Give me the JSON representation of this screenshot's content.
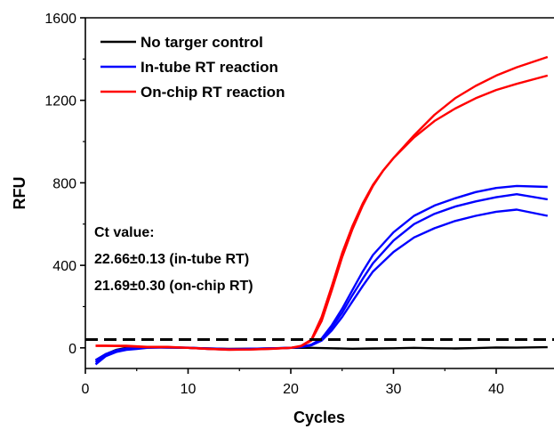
{
  "chart_data": {
    "type": "line",
    "xlabel": "Cycles",
    "ylabel": "RFU",
    "xlim": [
      0,
      45
    ],
    "ylim": [
      -100,
      1600
    ],
    "xticks": [
      0,
      10,
      20,
      30,
      40
    ],
    "yticks": [
      0,
      400,
      800,
      1200,
      1600
    ],
    "grid": false,
    "legend_position": "top-left",
    "legend": [
      {
        "label": "No targer control",
        "color": "#000000"
      },
      {
        "label": "In-tube RT reaction",
        "color": "#0000ff"
      },
      {
        "label": "On-chip RT reaction",
        "color": "#ff0000"
      }
    ],
    "threshold": 40,
    "annotations": {
      "title": "Ct value:",
      "line1": "22.66±0.13 (in-tube RT)",
      "line2": "21.69±0.30 (on-chip RT)"
    },
    "series": [
      {
        "group": "No targer control",
        "color": "#000000",
        "x": [
          1,
          2,
          3,
          4,
          5,
          6,
          8,
          10,
          12,
          14,
          16,
          18,
          20,
          22,
          24,
          26,
          28,
          30,
          32,
          34,
          36,
          38,
          40,
          42,
          45
        ],
        "y": [
          -60,
          -30,
          -10,
          0,
          2,
          3,
          2,
          0,
          -3,
          -5,
          -4,
          -3,
          0,
          0,
          -2,
          -4,
          -3,
          -2,
          0,
          -2,
          -3,
          -1,
          2,
          1,
          3
        ]
      },
      {
        "group": "In-tube RT reaction",
        "color": "#0000ff",
        "x": [
          1,
          2,
          3,
          4,
          5,
          6,
          8,
          10,
          12,
          14,
          16,
          18,
          20,
          21,
          22,
          23,
          24,
          25,
          26,
          27,
          28,
          30,
          32,
          34,
          36,
          38,
          40,
          42,
          45
        ],
        "y": [
          -80,
          -40,
          -20,
          -10,
          -5,
          0,
          2,
          0,
          -5,
          -8,
          -6,
          -4,
          0,
          5,
          15,
          45,
          110,
          190,
          280,
          370,
          450,
          560,
          640,
          690,
          725,
          755,
          775,
          785,
          780
        ]
      },
      {
        "group": "In-tube RT reaction",
        "color": "#0000ff",
        "x": [
          1,
          2,
          3,
          4,
          5,
          6,
          8,
          10,
          12,
          14,
          16,
          18,
          20,
          21,
          22,
          23,
          24,
          25,
          26,
          27,
          28,
          30,
          32,
          34,
          36,
          38,
          40,
          42,
          45
        ],
        "y": [
          -70,
          -35,
          -15,
          -5,
          0,
          2,
          3,
          1,
          -4,
          -7,
          -5,
          -3,
          0,
          5,
          15,
          40,
          100,
          170,
          255,
          335,
          410,
          520,
          600,
          650,
          685,
          710,
          730,
          745,
          720
        ]
      },
      {
        "group": "In-tube RT reaction",
        "color": "#0000ff",
        "x": [
          1,
          2,
          3,
          4,
          5,
          6,
          8,
          10,
          12,
          14,
          16,
          18,
          20,
          21,
          22,
          23,
          24,
          25,
          26,
          27,
          28,
          30,
          32,
          34,
          36,
          38,
          40,
          42,
          45
        ],
        "y": [
          -60,
          -30,
          -12,
          -3,
          1,
          3,
          2,
          0,
          -3,
          -6,
          -5,
          -2,
          0,
          4,
          12,
          35,
          85,
          150,
          225,
          300,
          370,
          465,
          535,
          580,
          615,
          640,
          660,
          670,
          640
        ]
      },
      {
        "group": "On-chip RT reaction",
        "color": "#ff0000",
        "x": [
          1,
          2,
          4,
          6,
          8,
          10,
          12,
          14,
          16,
          18,
          20,
          21,
          22,
          23,
          24,
          25,
          26,
          27,
          28,
          29,
          30,
          32,
          34,
          36,
          38,
          40,
          42,
          45
        ],
        "y": [
          10,
          10,
          10,
          5,
          5,
          0,
          -5,
          -10,
          -8,
          -5,
          0,
          10,
          40,
          150,
          300,
          460,
          590,
          700,
          790,
          860,
          920,
          1030,
          1130,
          1210,
          1270,
          1320,
          1360,
          1410
        ]
      },
      {
        "group": "On-chip RT reaction",
        "color": "#ff0000",
        "x": [
          1,
          2,
          4,
          6,
          8,
          10,
          12,
          14,
          16,
          18,
          20,
          21,
          22,
          23,
          24,
          25,
          26,
          27,
          28,
          29,
          30,
          32,
          34,
          36,
          38,
          40,
          42,
          45
        ],
        "y": [
          10,
          10,
          8,
          3,
          3,
          0,
          -5,
          -8,
          -8,
          -4,
          0,
          8,
          35,
          130,
          280,
          440,
          575,
          690,
          785,
          860,
          920,
          1020,
          1100,
          1160,
          1210,
          1250,
          1280,
          1320
        ]
      }
    ]
  }
}
